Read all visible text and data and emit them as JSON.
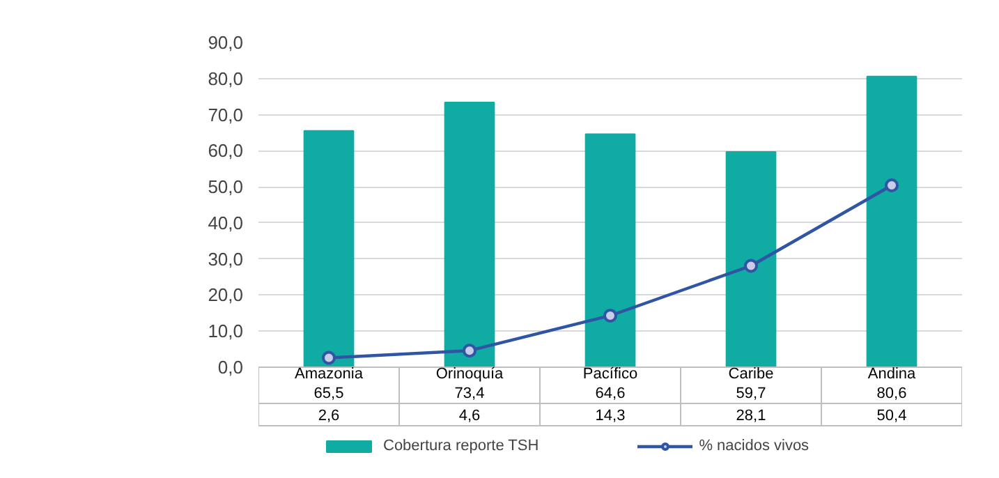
{
  "chart_data": {
    "type": "bar",
    "categories": [
      "Amazonia",
      "Orinoquía",
      "Pacífico",
      "Caribe",
      "Andina"
    ],
    "series": [
      {
        "name": "Cobertura reporte TSH",
        "color": "#10aca4",
        "values": [
          65.5,
          73.4,
          64.6,
          59.7,
          80.6
        ],
        "value_labels": [
          "65,5",
          "73,4",
          "64,6",
          "59,7",
          "80,6"
        ]
      },
      {
        "name": "% nacidos vivos",
        "type": "line",
        "color": "#2f55a4",
        "marker": "circle",
        "values": [
          2.6,
          4.6,
          14.3,
          28.1,
          50.4
        ],
        "value_labels": [
          "2,6",
          "4,6",
          "14,3",
          "28,1",
          "50,4"
        ]
      }
    ],
    "ylim": [
      0,
      90
    ],
    "yticks": [
      {
        "value": 0,
        "label": "0,0"
      },
      {
        "value": 10,
        "label": "10,0"
      },
      {
        "value": 20,
        "label": "20,0"
      },
      {
        "value": 30,
        "label": "30,0"
      },
      {
        "value": 40,
        "label": "40,0"
      },
      {
        "value": 50,
        "label": "50,0"
      },
      {
        "value": 60,
        "label": "60,0"
      },
      {
        "value": 70,
        "label": "70,0"
      },
      {
        "value": 80,
        "label": "80,0"
      },
      {
        "value": 90,
        "label": "90,0"
      }
    ],
    "grid": "y",
    "legend": "bottom"
  }
}
